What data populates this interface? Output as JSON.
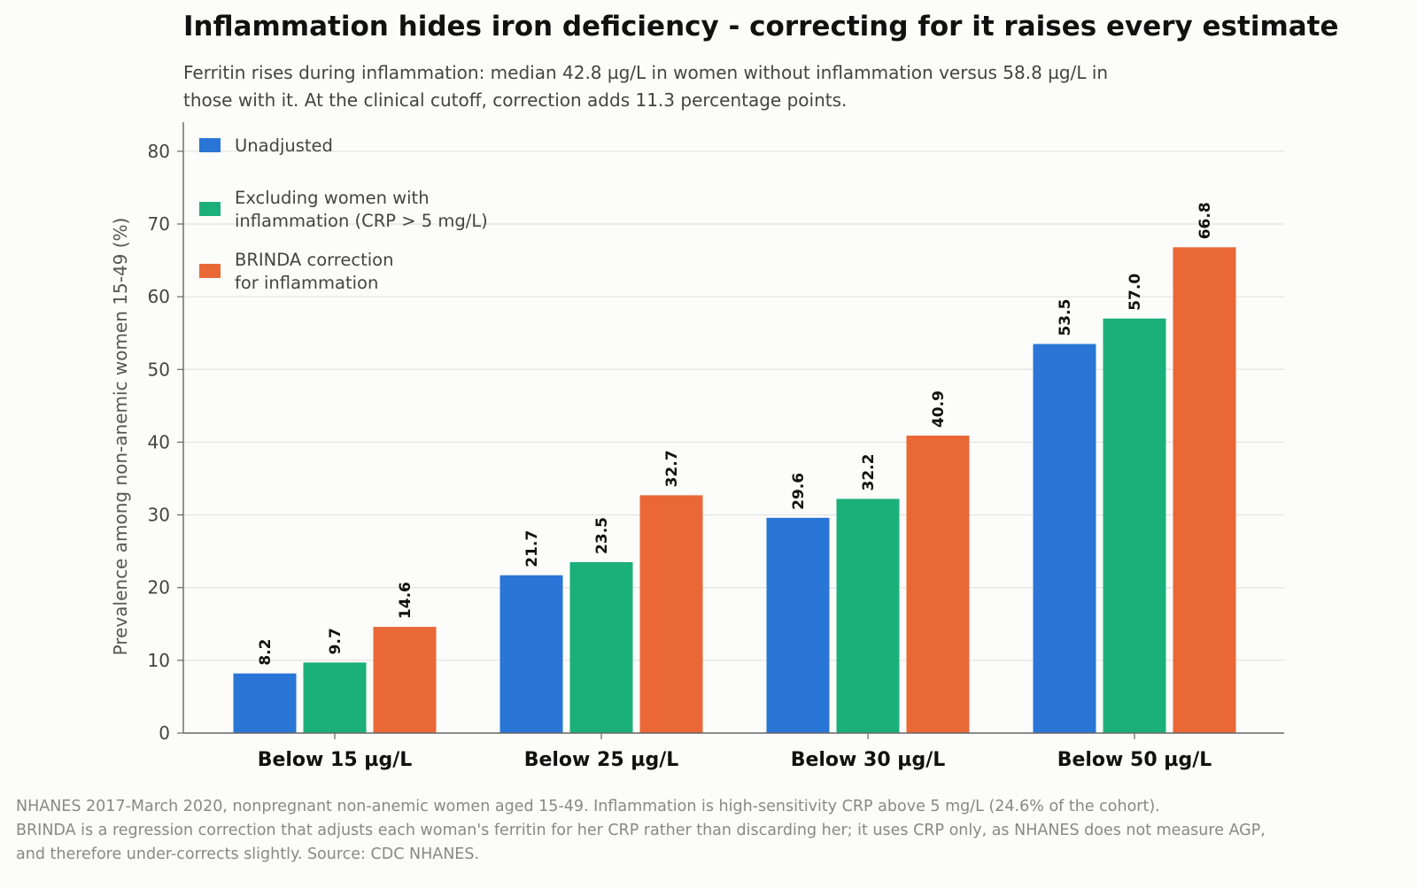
{
  "chart_data": {
    "type": "bar",
    "title": "Inflammation hides iron deficiency - correcting for it raises every estimate",
    "subtitle_lines": [
      "Ferritin rises during inflammation: median 42.8 µg/L in women without inflammation versus 58.8 µg/L in",
      "those with it. At the clinical cutoff, correction adds 11.3 percentage points."
    ],
    "ylabel": "Prevalence among non-anemic women 15-49 (%)",
    "xlabel": "",
    "ylim": [
      0,
      84
    ],
    "yticks": [
      0,
      10,
      20,
      30,
      40,
      50,
      60,
      70,
      80
    ],
    "grid": "horizontal",
    "legend_position": "top-left",
    "categories": [
      "Below 15 µg/L",
      "Below 25 µg/L",
      "Below 30 µg/L",
      "Below 50 µg/L"
    ],
    "series": [
      {
        "name": "Unadjusted",
        "legend_lines": [
          "Unadjusted"
        ],
        "color": "#2976d6",
        "values": [
          8.2,
          21.7,
          29.6,
          53.5
        ],
        "labels": [
          "8.2",
          "21.7",
          "29.6",
          "53.5"
        ]
      },
      {
        "name": "Excluding women with inflammation (CRP > 5 mg/L)",
        "legend_lines": [
          "Excluding women with",
          "inflammation (CRP > 5 mg/L)"
        ],
        "color": "#1bb07a",
        "values": [
          9.7,
          23.5,
          32.2,
          57.0
        ],
        "labels": [
          "9.7",
          "23.5",
          "32.2",
          "57.0"
        ]
      },
      {
        "name": "BRINDA correction for inflammation",
        "legend_lines": [
          "BRINDA correction",
          "for inflammation"
        ],
        "color": "#e96836",
        "values": [
          14.6,
          32.7,
          40.9,
          66.8
        ],
        "labels": [
          "14.6",
          "32.7",
          "40.9",
          "66.8"
        ]
      }
    ]
  },
  "footnote_lines": [
    "NHANES 2017-March 2020, nonpregnant non-anemic women aged 15-49. Inflammation is high-sensitivity CRP above 5 mg/L (24.6% of the cohort).",
    "BRINDA is a regression correction that adjusts each woman's ferritin for her CRP rather than discarding her; it uses CRP only, as NHANES does not measure AGP,",
    "and therefore under-corrects slightly. Source: CDC NHANES."
  ]
}
